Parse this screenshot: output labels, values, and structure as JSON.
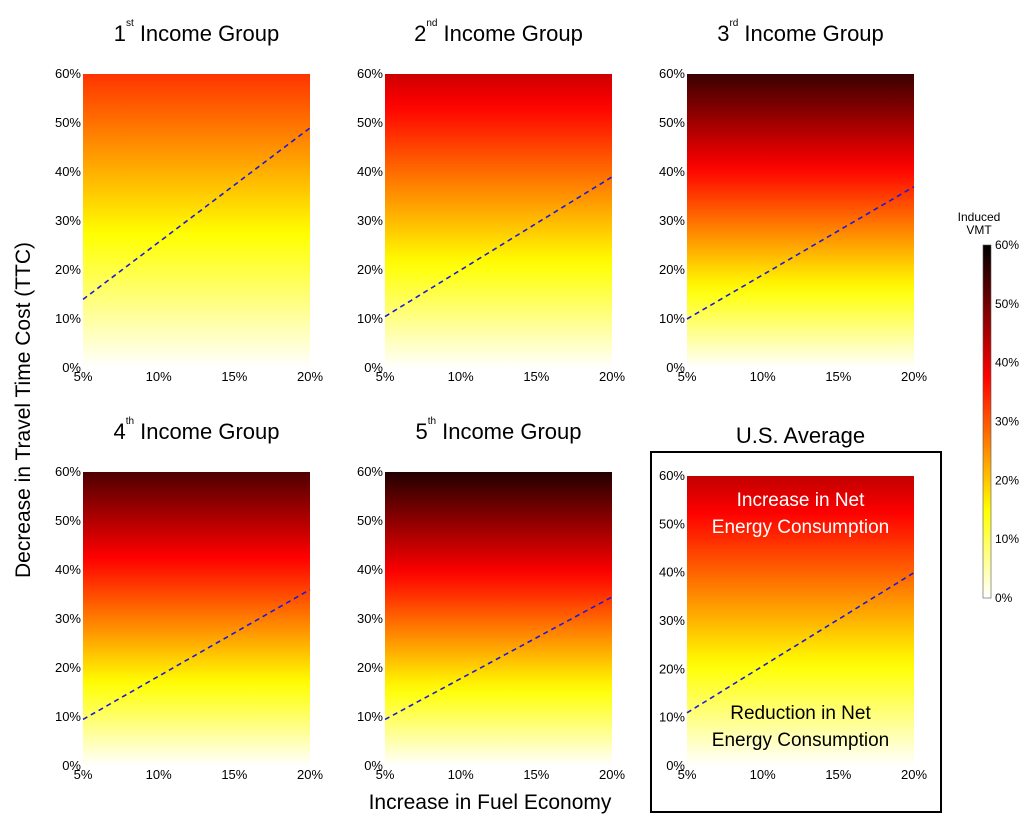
{
  "figure": {
    "xlabel": "Increase in Fuel Economy",
    "ylabel": "Decrease in Travel Time Cost (TTC)"
  },
  "colorbar": {
    "title_line1": "Induced",
    "title_line2": "VMT",
    "ticks": [
      "0%",
      "10%",
      "20%",
      "30%",
      "40%",
      "50%",
      "60%"
    ],
    "colormap": "hot (white-yellow-red-black)"
  },
  "colors": {
    "breakeven_line": "#1a1adf",
    "highlight_box": "#000000"
  },
  "chart_data": [
    {
      "type": "heatmap",
      "title_prefix": "1",
      "title_sup": "st",
      "title_main": "Income Group",
      "xlim": [
        5,
        20
      ],
      "ylim": [
        0,
        60
      ],
      "xticks": [
        "5%",
        "10%",
        "15%",
        "20%"
      ],
      "yticks": [
        "0%",
        "10%",
        "20%",
        "30%",
        "40%",
        "50%",
        "60%"
      ],
      "induced_vmt_top": 33,
      "breakeven_line": {
        "x": [
          5,
          20
        ],
        "y": [
          14,
          49
        ]
      }
    },
    {
      "type": "heatmap",
      "title_prefix": "2",
      "title_sup": "nd",
      "title_main": "Income Group",
      "xlim": [
        5,
        20
      ],
      "ylim": [
        0,
        60
      ],
      "xticks": [
        "5%",
        "10%",
        "15%",
        "20%"
      ],
      "yticks": [
        "0%",
        "10%",
        "20%",
        "30%",
        "40%",
        "50%",
        "60%"
      ],
      "induced_vmt_top": 42,
      "breakeven_line": {
        "x": [
          5,
          20
        ],
        "y": [
          10.5,
          39
        ]
      }
    },
    {
      "type": "heatmap",
      "title_prefix": "3",
      "title_sup": "rd",
      "title_main": "Income Group",
      "xlim": [
        5,
        20
      ],
      "ylim": [
        0,
        60
      ],
      "xticks": [
        "5%",
        "10%",
        "15%",
        "20%"
      ],
      "yticks": [
        "0%",
        "10%",
        "20%",
        "30%",
        "40%",
        "50%",
        "60%"
      ],
      "induced_vmt_top": 55,
      "breakeven_line": {
        "x": [
          5,
          20
        ],
        "y": [
          10,
          37
        ]
      }
    },
    {
      "type": "heatmap",
      "title_prefix": "4",
      "title_sup": "th",
      "title_main": "Income Group",
      "xlim": [
        5,
        20
      ],
      "ylim": [
        0,
        60
      ],
      "xticks": [
        "5%",
        "10%",
        "15%",
        "20%"
      ],
      "yticks": [
        "0%",
        "10%",
        "20%",
        "30%",
        "40%",
        "50%",
        "60%"
      ],
      "induced_vmt_top": 53,
      "breakeven_line": {
        "x": [
          5,
          20
        ],
        "y": [
          9.5,
          36
        ]
      }
    },
    {
      "type": "heatmap",
      "title_prefix": "5",
      "title_sup": "th",
      "title_main": "Income Group",
      "xlim": [
        5,
        20
      ],
      "ylim": [
        0,
        60
      ],
      "xticks": [
        "5%",
        "10%",
        "15%",
        "20%"
      ],
      "yticks": [
        "0%",
        "10%",
        "20%",
        "30%",
        "40%",
        "50%",
        "60%"
      ],
      "induced_vmt_top": 57,
      "breakeven_line": {
        "x": [
          5,
          20
        ],
        "y": [
          9.5,
          34.5
        ]
      }
    },
    {
      "type": "heatmap",
      "title_prefix": "",
      "title_sup": "",
      "title_main": "U.S. Average",
      "xlim": [
        5,
        20
      ],
      "ylim": [
        0,
        60
      ],
      "xticks": [
        "5%",
        "10%",
        "15%",
        "20%"
      ],
      "yticks": [
        "0%",
        "10%",
        "20%",
        "30%",
        "40%",
        "50%",
        "60%"
      ],
      "induced_vmt_top": 43,
      "breakeven_line": {
        "x": [
          5,
          20
        ],
        "y": [
          11,
          40
        ]
      },
      "highlighted": true,
      "annotations": {
        "upper_line1": "Increase in Net",
        "upper_line2": "Energy Consumption",
        "lower_line1": "Reduction in Net",
        "lower_line2": "Energy Consumption"
      }
    }
  ]
}
